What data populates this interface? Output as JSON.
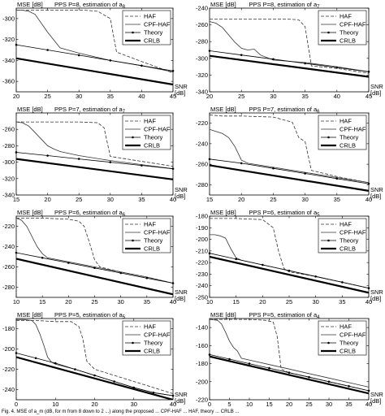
{
  "figure": {
    "caption": "Fig. 4. MSE of a_m (dB, for m from 8 down to 2 ...) along the proposed ... CPF-HAF ... HAF, theory ... CRLB ..."
  },
  "legend_entries": [
    "HAF",
    "CPF-HAF",
    "Theory",
    "CRLB"
  ],
  "chart_data": [
    {
      "type": "line",
      "title_prefix": "PPS P=8, estimation of a",
      "title_sub": "8",
      "ylabel": "MSE [dB]",
      "xlabel": "SNR\n[dB]",
      "xlim": [
        20,
        45
      ],
      "ylim": [
        -370,
        -290
      ],
      "xticks": [
        20,
        25,
        30,
        35,
        40,
        45
      ],
      "yticks": [
        -300,
        -320,
        -340,
        -360
      ],
      "series": [
        {
          "name": "HAF",
          "style": "dashed",
          "x": [
            20,
            24,
            28,
            31,
            33,
            35,
            36,
            40,
            45
          ],
          "y": [
            -292,
            -292,
            -292,
            -292,
            -293,
            -300,
            -332,
            -341,
            -352
          ]
        },
        {
          "name": "CPF-HAF",
          "style": "solid",
          "x": [
            20,
            21,
            22,
            23,
            25,
            27,
            30,
            35,
            40,
            45
          ],
          "y": [
            -292,
            -292,
            -293,
            -296,
            -313,
            -328,
            -333,
            -340,
            -345,
            -351
          ]
        },
        {
          "name": "Theory",
          "style": "marker",
          "x": [
            20,
            25,
            30,
            35,
            40,
            45
          ],
          "y": [
            -325,
            -330,
            -335,
            -340,
            -345,
            -350
          ]
        },
        {
          "name": "CRLB",
          "style": "thick",
          "x": [
            20,
            45
          ],
          "y": [
            -338,
            -363
          ]
        }
      ]
    },
    {
      "type": "line",
      "title_prefix": "PPS P=8, estimation of a",
      "title_sub": "7",
      "ylabel": "MSE [dB]",
      "xlabel": "SNR\n[dB]",
      "xlim": [
        20,
        45
      ],
      "ylim": [
        -340,
        -240
      ],
      "xticks": [
        20,
        25,
        30,
        35,
        40,
        45
      ],
      "yticks": [
        -240,
        -260,
        -280,
        -300,
        -320,
        -340
      ],
      "series": [
        {
          "name": "HAF",
          "style": "dashed",
          "x": [
            20,
            24,
            28,
            32,
            34,
            35,
            36,
            40,
            45
          ],
          "y": [
            -253,
            -253,
            -253,
            -253,
            -254,
            -262,
            -309,
            -312,
            -318
          ]
        },
        {
          "name": "CPF-HAF",
          "style": "solid",
          "x": [
            20,
            21,
            22,
            23,
            24,
            25,
            26,
            27,
            28,
            30,
            35,
            40,
            45
          ],
          "y": [
            -256,
            -258,
            -263,
            -272,
            -281,
            -288,
            -290,
            -289,
            -296,
            -302,
            -305,
            -310,
            -316
          ]
        },
        {
          "name": "Theory",
          "style": "marker",
          "x": [
            20,
            25,
            30,
            35,
            40,
            45
          ],
          "y": [
            -291,
            -296,
            -301,
            -306,
            -311,
            -316
          ]
        },
        {
          "name": "CRLB",
          "style": "thick",
          "x": [
            20,
            45
          ],
          "y": [
            -297,
            -322
          ]
        }
      ]
    },
    {
      "type": "line",
      "title_prefix": "PPS P=7, estimation of a",
      "title_sub": "7",
      "ylabel": "MSE [dB]",
      "xlabel": "SNR\n[dB]",
      "xlim": [
        15,
        40
      ],
      "ylim": [
        -340,
        -240
      ],
      "xticks": [
        15,
        20,
        25,
        30,
        35,
        40
      ],
      "yticks": [
        -260,
        -280,
        -300,
        -320,
        -340
      ],
      "series": [
        {
          "name": "HAF",
          "style": "dashed",
          "x": [
            15,
            20,
            25,
            28,
            29,
            30,
            35,
            40
          ],
          "y": [
            -251,
            -251,
            -251,
            -252,
            -258,
            -293,
            -299,
            -305
          ]
        },
        {
          "name": "CPF-HAF",
          "style": "solid",
          "x": [
            15,
            16,
            17,
            18,
            19,
            20,
            21,
            22,
            25,
            30,
            35,
            40
          ],
          "y": [
            -251,
            -252,
            -256,
            -264,
            -272,
            -280,
            -284,
            -287,
            -292,
            -298,
            -303,
            -308
          ]
        },
        {
          "name": "Theory",
          "style": "marker",
          "x": [
            15,
            20,
            25,
            30,
            35,
            40
          ],
          "y": [
            -288,
            -292,
            -296,
            -300,
            -304,
            -308
          ]
        },
        {
          "name": "CRLB",
          "style": "thick",
          "x": [
            15,
            40
          ],
          "y": [
            -296,
            -321
          ]
        }
      ]
    },
    {
      "type": "line",
      "title_prefix": "PPS P=7, estimation of a",
      "title_sub": "6",
      "ylabel": "MSE [dB]",
      "xlabel": "SNR\n[dB]",
      "xlim": [
        15,
        40
      ],
      "ylim": [
        -290,
        -210
      ],
      "xticks": [
        15,
        20,
        25,
        30,
        35,
        40
      ],
      "yticks": [
        -220,
        -240,
        -260,
        -280
      ],
      "series": [
        {
          "name": "HAF",
          "style": "dashed",
          "x": [
            15,
            17,
            20,
            25,
            28,
            29,
            30,
            31,
            35,
            40
          ],
          "y": [
            -212,
            -213,
            -213,
            -214,
            -219,
            -234,
            -238,
            -266,
            -272,
            -278
          ]
        },
        {
          "name": "CPF-HAF",
          "style": "solid",
          "x": [
            15,
            16,
            17,
            18,
            19,
            20,
            21,
            25,
            30,
            35,
            40
          ],
          "y": [
            -226,
            -228,
            -230,
            -234,
            -243,
            -256,
            -259,
            -263,
            -268,
            -273,
            -278
          ]
        },
        {
          "name": "Theory",
          "style": "marker",
          "x": [
            15,
            20,
            25,
            30,
            35,
            40
          ],
          "y": [
            -255,
            -259,
            -264,
            -269,
            -274,
            -279
          ]
        },
        {
          "name": "CRLB",
          "style": "thick",
          "x": [
            15,
            40
          ],
          "y": [
            -261,
            -286
          ]
        }
      ]
    },
    {
      "type": "line",
      "title_prefix": "PPS P=6, estimation of a",
      "title_sub": "6",
      "ylabel": "MSE [dB]",
      "xlabel": "SNR\n[dB]",
      "xlim": [
        10,
        40
      ],
      "ylim": [
        -290,
        -210
      ],
      "xticks": [
        10,
        15,
        20,
        25,
        30,
        35,
        40
      ],
      "yticks": [
        -220,
        -240,
        -260,
        -280
      ],
      "series": [
        {
          "name": "HAF",
          "style": "dashed",
          "x": [
            10,
            15,
            20,
            22,
            23,
            24,
            25,
            26,
            30,
            35,
            40
          ],
          "y": [
            -212,
            -212,
            -213,
            -215,
            -220,
            -236,
            -253,
            -260,
            -265,
            -270,
            -276
          ]
        },
        {
          "name": "CPF-HAF",
          "style": "solid",
          "x": [
            10,
            11,
            12,
            13,
            14,
            15,
            16,
            20,
            25,
            30,
            35,
            40
          ],
          "y": [
            -212,
            -214,
            -220,
            -230,
            -240,
            -247,
            -251,
            -255,
            -260,
            -265,
            -270,
            -276
          ]
        },
        {
          "name": "Theory",
          "style": "marker",
          "x": [
            10,
            15,
            20,
            25,
            30,
            35,
            40
          ],
          "y": [
            -246,
            -251,
            -256,
            -261,
            -266,
            -271,
            -276
          ]
        },
        {
          "name": "CRLB",
          "style": "thick",
          "x": [
            10,
            40
          ],
          "y": [
            -252,
            -287
          ]
        }
      ]
    },
    {
      "type": "line",
      "title_prefix": "PPS P=6, estimation of a",
      "title_sub": "5",
      "ylabel": "MSE [dB]",
      "xlabel": "SNR\n[dB]",
      "xlim": [
        10,
        40
      ],
      "ylim": [
        -250,
        -180
      ],
      "xticks": [
        10,
        15,
        20,
        25,
        30,
        35,
        40
      ],
      "yticks": [
        -180,
        -190,
        -200,
        -210,
        -220,
        -230,
        -240,
        -250
      ],
      "series": [
        {
          "name": "HAF",
          "style": "dashed",
          "x": [
            10,
            15,
            20,
            22,
            23,
            24,
            25,
            30,
            35,
            40
          ],
          "y": [
            -182,
            -182,
            -183,
            -190,
            -210,
            -225,
            -228,
            -232,
            -237,
            -242
          ]
        },
        {
          "name": "CPF-HAF",
          "style": "solid",
          "x": [
            10,
            11,
            12,
            13,
            14,
            15,
            16,
            20,
            25,
            30,
            35,
            40
          ],
          "y": [
            -196,
            -196,
            -197,
            -199,
            -208,
            -216,
            -218,
            -222,
            -227,
            -232,
            -237,
            -242
          ]
        },
        {
          "name": "Theory",
          "style": "marker",
          "x": [
            10,
            15,
            20,
            25,
            30,
            35,
            40
          ],
          "y": [
            -212,
            -217,
            -222,
            -227,
            -232,
            -237,
            -242
          ]
        },
        {
          "name": "CRLB",
          "style": "thick",
          "x": [
            10,
            40
          ],
          "y": [
            -215,
            -246
          ]
        }
      ]
    },
    {
      "type": "line",
      "title_prefix": "PPS P=5, estimation of a",
      "title_sub": "5",
      "ylabel": "MSE [dB]",
      "xlabel": "SNR\n[dB]",
      "xlim": [
        0,
        40
      ],
      "ylim": [
        -250,
        -170
      ],
      "xticks": [
        0,
        10,
        20,
        30,
        40
      ],
      "yticks": [
        -180,
        -200,
        -220,
        -240
      ],
      "series": [
        {
          "name": "HAF",
          "style": "dashed",
          "x": [
            0,
            5,
            10,
            14,
            16,
            17,
            18,
            20,
            25,
            30,
            35,
            40
          ],
          "y": [
            -172,
            -172,
            -173,
            -173,
            -178,
            -190,
            -212,
            -220,
            -226,
            -232,
            -238,
            -244
          ]
        },
        {
          "name": "CPF-HAF",
          "style": "solid",
          "x": [
            0,
            2,
            4,
            5,
            6,
            7,
            8,
            9,
            10,
            15,
            20,
            25,
            30,
            35,
            40
          ],
          "y": [
            -171,
            -171,
            -172,
            -176,
            -185,
            -196,
            -208,
            -213,
            -215,
            -220,
            -226,
            -232,
            -238,
            -243,
            -246
          ]
        },
        {
          "name": "Theory",
          "style": "marker",
          "x": [
            0,
            5,
            10,
            15,
            20,
            25,
            30,
            35,
            40
          ],
          "y": [
            -204,
            -209,
            -214,
            -220,
            -226,
            -232,
            -238,
            -243,
            -246
          ]
        },
        {
          "name": "CRLB",
          "style": "thick",
          "x": [
            0,
            40
          ],
          "y": [
            -208,
            -250
          ]
        }
      ]
    },
    {
      "type": "line",
      "title_prefix": "PPS P=5, estimation of a",
      "title_sub": "4",
      "ylabel": "MSE [dB]",
      "xlabel": "SNR\n[dB]",
      "xlim": [
        0,
        40
      ],
      "ylim": [
        -220,
        -130
      ],
      "xticks": [
        0,
        5,
        10,
        15,
        20,
        25,
        30,
        35,
        40
      ],
      "yticks": [
        -140,
        -160,
        -180,
        -200,
        -220
      ],
      "series": [
        {
          "name": "HAF",
          "style": "dashed",
          "x": [
            0,
            5,
            10,
            14,
            16,
            17,
            18,
            20,
            25,
            30,
            35,
            40
          ],
          "y": [
            -131,
            -131,
            -131,
            -132,
            -134,
            -150,
            -186,
            -190,
            -195,
            -200,
            -205,
            -210
          ]
        },
        {
          "name": "CPF-HAF",
          "style": "solid",
          "x": [
            0,
            2,
            3,
            4,
            5,
            6,
            7,
            8,
            10,
            15,
            20,
            25,
            30,
            35,
            40
          ],
          "y": [
            -131,
            -132,
            -136,
            -145,
            -155,
            -162,
            -166,
            -174,
            -176,
            -181,
            -186,
            -191,
            -196,
            -201,
            -206
          ]
        },
        {
          "name": "Theory",
          "style": "marker",
          "x": [
            0,
            5,
            10,
            15,
            20,
            25,
            30,
            35,
            40
          ],
          "y": [
            -170,
            -175,
            -180,
            -185,
            -190,
            -195,
            -200,
            -205,
            -210
          ]
        },
        {
          "name": "CRLB",
          "style": "thick",
          "x": [
            0,
            40
          ],
          "y": [
            -172,
            -213
          ]
        }
      ]
    }
  ]
}
